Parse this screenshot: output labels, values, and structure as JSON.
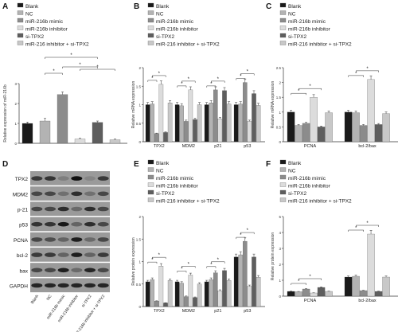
{
  "panel_letters": [
    "A",
    "B",
    "C",
    "D",
    "E",
    "F"
  ],
  "groups": {
    "labels": [
      "Blank",
      "NC",
      "miR-216b mimic",
      "miR-216b inhibitor",
      "si-TPX2",
      "miR-216 inhibitor + si-TPX2"
    ],
    "colors": [
      "#1a1a1a",
      "#b3b3b3",
      "#8c8c8c",
      "#dcdcdc",
      "#5e5e5e",
      "#c8c8c8"
    ]
  },
  "blot": {
    "proteins": [
      "TPX2",
      "MDM2",
      "p-21",
      "p53",
      "PCNA",
      "bcl-2",
      "bax",
      "GAPDH"
    ],
    "lanes": [
      "Blank",
      "NC",
      "miR-216b mimic",
      "miR-216b inhibitor",
      "si-TPX2",
      "miR-216b inhibitor + si-TPX2"
    ]
  },
  "chart_data": [
    {
      "panel": "A",
      "type": "bar",
      "ylabel": "Relative expression of miR-216b",
      "ylim": [
        0,
        3
      ],
      "yticks": [
        0,
        1,
        2,
        3
      ],
      "categories": [
        "Blank",
        "NC",
        "miR-216b mimic",
        "miR-216b inhibitor",
        "si-TPX2",
        "miR-216 inhibitor + si-TPX2"
      ],
      "values": [
        1.0,
        1.12,
        2.45,
        0.22,
        1.05,
        0.18
      ],
      "errors": [
        0.07,
        0.13,
        0.13,
        0.03,
        0.07,
        0.03
      ],
      "significance": [
        "*",
        "*",
        "*",
        "*"
      ]
    },
    {
      "panel": "B",
      "type": "bar",
      "ylabel": "Relative mRNA expression",
      "ylim": [
        0,
        2.0
      ],
      "yticks": [
        0,
        0.5,
        1.0,
        1.5,
        2.0
      ],
      "categories": [
        "TPX2",
        "MDM2",
        "p21",
        "p53"
      ],
      "series": [
        {
          "name": "Blank",
          "values": [
            1.0,
            1.0,
            1.0,
            1.0
          ]
        },
        {
          "name": "NC",
          "values": [
            1.02,
            0.97,
            1.05,
            1.02
          ]
        },
        {
          "name": "miR-216b mimic",
          "values": [
            0.22,
            0.55,
            1.4,
            1.6
          ]
        },
        {
          "name": "miR-216b inhibitor",
          "values": [
            1.55,
            1.4,
            0.62,
            0.55
          ]
        },
        {
          "name": "si-TPX2",
          "values": [
            0.25,
            0.6,
            1.38,
            1.3
          ]
        },
        {
          "name": "miR-216 inhibitor + si-TPX2",
          "values": [
            1.05,
            1.0,
            1.02,
            0.98
          ]
        }
      ]
    },
    {
      "panel": "C",
      "type": "bar",
      "ylabel": "Relative mRNA expression",
      "ylim": [
        0,
        2.5
      ],
      "yticks": [
        0,
        0.5,
        1.0,
        1.5,
        2.0,
        2.5
      ],
      "categories": [
        "PCNA",
        "bcl-2/bax"
      ],
      "series": [
        {
          "name": "Blank",
          "values": [
            1.0,
            1.0
          ]
        },
        {
          "name": "NC",
          "values": [
            0.55,
            0.98
          ]
        },
        {
          "name": "miR-216b mimic",
          "values": [
            0.62,
            0.55
          ]
        },
        {
          "name": "miR-216b inhibitor",
          "values": [
            1.5,
            2.1
          ]
        },
        {
          "name": "si-TPX2",
          "values": [
            0.5,
            0.58
          ]
        },
        {
          "name": "miR-216 inhibitor + si-TPX2",
          "values": [
            0.98,
            0.95
          ]
        }
      ]
    },
    {
      "panel": "E",
      "type": "bar",
      "ylabel": "Relative protein expression",
      "ylim": [
        0,
        2.0
      ],
      "yticks": [
        0,
        0.5,
        1.0,
        1.5,
        2.0
      ],
      "categories": [
        "TPX2",
        "MDM2",
        "p21",
        "p53"
      ],
      "series": [
        {
          "name": "Blank",
          "values": [
            0.55,
            0.55,
            0.55,
            1.1
          ]
        },
        {
          "name": "NC",
          "values": [
            0.6,
            0.52,
            0.6,
            1.15
          ]
        },
        {
          "name": "miR-216b mimic",
          "values": [
            0.12,
            0.22,
            0.75,
            1.45
          ]
        },
        {
          "name": "miR-216b inhibitor",
          "values": [
            0.9,
            0.7,
            0.35,
            0.45
          ]
        },
        {
          "name": "si-TPX2",
          "values": [
            0.08,
            0.2,
            0.8,
            1.1
          ]
        },
        {
          "name": "miR-216 inhibitor + si-TPX2",
          "values": [
            0.58,
            0.5,
            0.58,
            0.65
          ]
        }
      ]
    },
    {
      "panel": "F",
      "type": "bar",
      "ylabel": "Relative protein expression",
      "ylim": [
        0,
        5
      ],
      "yticks": [
        0,
        1,
        2,
        3,
        4,
        5
      ],
      "categories": [
        "PCNA",
        "bcl-2/bax"
      ],
      "series": [
        {
          "name": "Blank",
          "values": [
            0.3,
            1.2
          ]
        },
        {
          "name": "NC",
          "values": [
            0.28,
            1.25
          ]
        },
        {
          "name": "miR-216b mimic",
          "values": [
            0.45,
            0.35
          ]
        },
        {
          "name": "miR-216b inhibitor",
          "values": [
            0.2,
            3.9
          ]
        },
        {
          "name": "si-TPX2",
          "values": [
            0.55,
            0.3
          ]
        },
        {
          "name": "miR-216 inhibitor + si-TPX2",
          "values": [
            0.3,
            1.2
          ]
        }
      ]
    }
  ]
}
